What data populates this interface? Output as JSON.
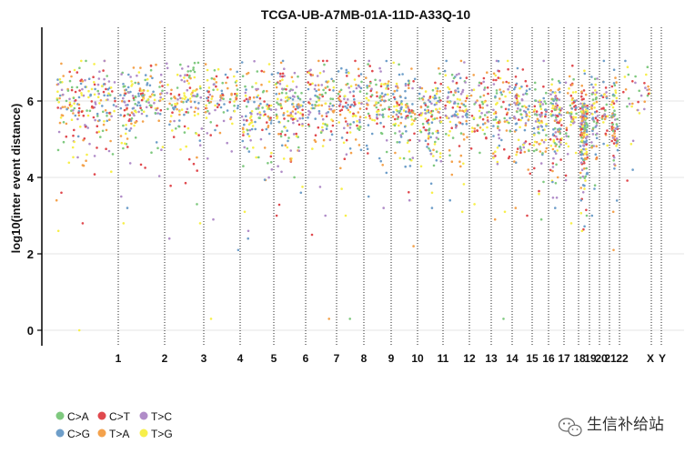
{
  "chart_data": {
    "type": "scatter",
    "title": "TCGA-UB-A7MB-01A-11D-A33Q-10",
    "ylabel": "log10(inter event distance)",
    "xlabel": "",
    "ylim": [
      0,
      7.8
    ],
    "yticks": [
      0,
      2,
      4,
      6
    ],
    "grid": "horizontal",
    "legend_placement": "bottom-left",
    "chromosomes": [
      "1",
      "2",
      "3",
      "4",
      "5",
      "6",
      "7",
      "8",
      "9",
      "10",
      "11",
      "12",
      "13",
      "14",
      "15",
      "16",
      "17",
      "18",
      "19",
      "20",
      "21",
      "22",
      "X",
      "Y"
    ],
    "series": [
      {
        "name": "C>A",
        "color": "#7FC97F"
      },
      {
        "name": "C>G",
        "color": "#6E9EC9"
      },
      {
        "name": "C>T",
        "color": "#E0494E"
      },
      {
        "name": "T>A",
        "color": "#F4A24C"
      },
      {
        "name": "T>C",
        "color": "#B08CC8"
      },
      {
        "name": "T>G",
        "color": "#F7EF4A"
      }
    ],
    "chromosome_points": [
      {
        "chrom": "1",
        "n": 200,
        "median": 6.0,
        "spread": 0.45,
        "outliers": [
          0.0,
          2.6,
          2.8,
          3.4,
          3.6
        ]
      },
      {
        "chrom": "2",
        "n": 170,
        "median": 6.1,
        "spread": 0.4,
        "outliers": [
          2.8,
          3.2,
          3.5
        ]
      },
      {
        "chrom": "3",
        "n": 120,
        "median": 6.1,
        "spread": 0.45,
        "outliers": [
          2.4,
          2.8,
          3.3
        ]
      },
      {
        "chrom": "4",
        "n": 95,
        "median": 6.2,
        "spread": 0.35,
        "outliers": [
          0.3,
          2.1,
          2.9
        ]
      },
      {
        "chrom": "5",
        "n": 120,
        "median": 5.9,
        "spread": 0.5,
        "outliers": [
          2.4,
          2.6,
          3.1
        ]
      },
      {
        "chrom": "6",
        "n": 140,
        "median": 5.9,
        "spread": 0.5,
        "outliers": [
          3.0,
          3.6
        ]
      },
      {
        "chrom": "7",
        "n": 110,
        "median": 6.0,
        "spread": 0.5,
        "outliers": [
          0.3,
          2.5,
          3.0
        ]
      },
      {
        "chrom": "8",
        "n": 100,
        "median": 6.0,
        "spread": 0.45,
        "outliers": [
          0.3,
          3.0,
          3.7
        ]
      },
      {
        "chrom": "9",
        "n": 100,
        "median": 6.1,
        "spread": 0.45,
        "outliers": [
          3.2,
          3.5
        ]
      },
      {
        "chrom": "10",
        "n": 110,
        "median": 5.9,
        "spread": 0.5,
        "outliers": [
          2.2,
          3.4
        ]
      },
      {
        "chrom": "11",
        "n": 120,
        "median": 5.8,
        "spread": 0.5,
        "outliers": [
          3.2,
          3.6
        ]
      },
      {
        "chrom": "12",
        "n": 110,
        "median": 5.9,
        "spread": 0.5,
        "outliers": [
          3.1,
          3.4
        ]
      },
      {
        "chrom": "13",
        "n": 60,
        "median": 5.9,
        "spread": 0.45,
        "outliers": [
          3.3
        ]
      },
      {
        "chrom": "14",
        "n": 80,
        "median": 5.8,
        "spread": 0.5,
        "outliers": [
          0.3,
          2.9,
          3.1
        ]
      },
      {
        "chrom": "15",
        "n": 90,
        "median": 5.8,
        "spread": 0.5,
        "outliers": [
          3.0,
          3.2
        ]
      },
      {
        "chrom": "16",
        "n": 80,
        "median": 5.6,
        "spread": 0.5,
        "outliers": [
          2.9
        ]
      },
      {
        "chrom": "17",
        "n": 110,
        "median": 5.6,
        "spread": 0.5,
        "outliers": [
          3.2
        ]
      },
      {
        "chrom": "18",
        "n": 60,
        "median": 5.8,
        "spread": 0.5,
        "outliers": [
          2.8
        ]
      },
      {
        "chrom": "19",
        "n": 180,
        "median": 5.3,
        "spread": 0.55,
        "outliers": [
          2.6,
          3.0,
          3.4
        ]
      },
      {
        "chrom": "20",
        "n": 60,
        "median": 5.8,
        "spread": 0.5,
        "outliers": [
          3.0
        ]
      },
      {
        "chrom": "21",
        "n": 35,
        "median": 6.0,
        "spread": 0.45,
        "outliers": []
      },
      {
        "chrom": "22",
        "n": 70,
        "median": 5.6,
        "spread": 0.5,
        "outliers": [
          2.1,
          3.1
        ]
      },
      {
        "chrom": "X",
        "n": 35,
        "median": 6.3,
        "spread": 0.35,
        "outliers": [
          4.2
        ]
      },
      {
        "chrom": "Y",
        "n": 0,
        "median": 6.0,
        "spread": 0.0,
        "outliers": []
      }
    ]
  },
  "watermark": {
    "text": "生信补给站",
    "icon": "wechat-logo-icon"
  }
}
